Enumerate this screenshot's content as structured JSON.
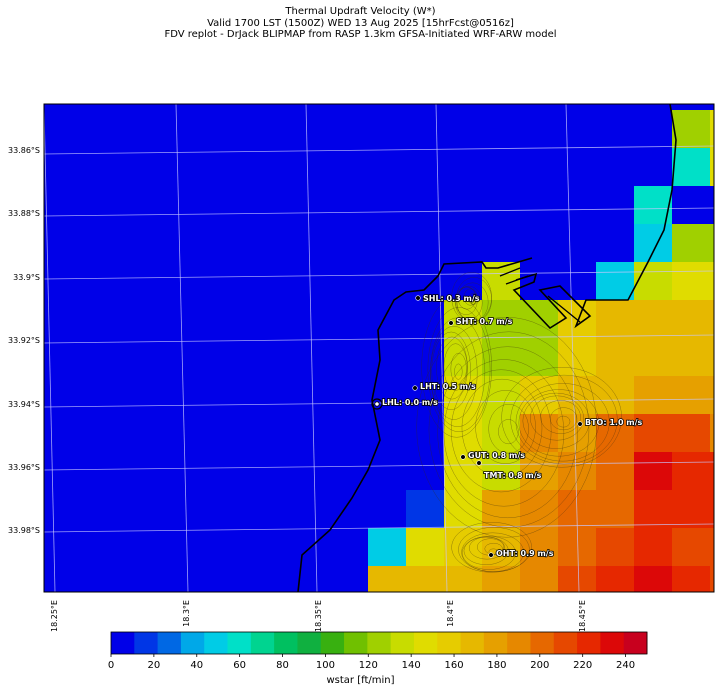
{
  "header": {
    "line1": "Thermal Updraft Velocity (W*)",
    "line2": "Valid 1700 LST (1500Z) WED 13 Aug 2025 [15hrFcst@0516z]",
    "line3": "FDV replot - DrJack BLIPMAP from RASP 1.3km GFSA-Initiated WRF-ARW model"
  },
  "lat_ticks": [
    "33.86°S",
    "33.88°S",
    "33.9°S",
    "33.92°S",
    "33.94°S",
    "33.96°S",
    "33.98°S"
  ],
  "lon_ticks": [
    "18.25°E",
    "18.3°E",
    "18.35°E",
    "18.4°E",
    "18.45°E"
  ],
  "stations": [
    {
      "label": "SHL: 0.3 m/s",
      "marker": "dot"
    },
    {
      "label": "SHT: 0.7 m/s",
      "marker": "dot"
    },
    {
      "label": "LHT: 0.5 m/s",
      "marker": "dot"
    },
    {
      "label": "LHL: 0.0 m/s",
      "marker": "ring"
    },
    {
      "label": "BTO: 1.0 m/s",
      "marker": "dot"
    },
    {
      "label": "GUT: 0.8 m/s",
      "marker": "dot"
    },
    {
      "label": "TMT: 0.8 m/s",
      "marker": "dot"
    },
    {
      "label": "OHT: 0.9 m/s",
      "marker": "dot"
    }
  ],
  "colorbar": {
    "title": "wstar [ft/min]",
    "ticks": [
      "0",
      "20",
      "40",
      "60",
      "80",
      "100",
      "120",
      "140",
      "160",
      "180",
      "200",
      "220",
      "240"
    ],
    "colors": [
      "#0000e8",
      "#0036e6",
      "#0068e4",
      "#00a8e8",
      "#00cce6",
      "#00e0c8",
      "#00d490",
      "#00c060",
      "#10b040",
      "#38b010",
      "#70c000",
      "#a0d000",
      "#c8dc00",
      "#e0dc00",
      "#e6cc00",
      "#e6b800",
      "#e6a000",
      "#e68800",
      "#e66800",
      "#e64800",
      "#e62800",
      "#dc0808",
      "#c8001e"
    ]
  }
}
